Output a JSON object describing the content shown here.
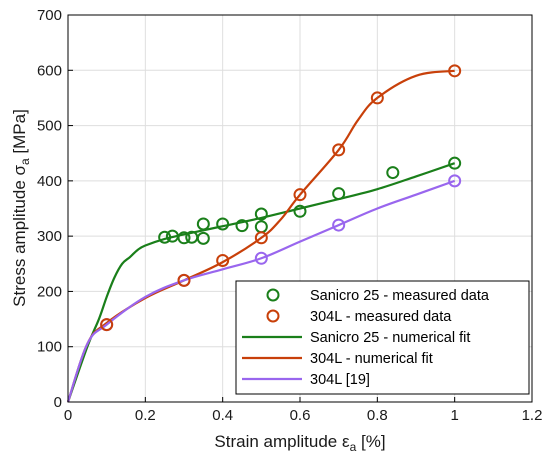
{
  "chart_data": {
    "type": "line",
    "xlabel": {
      "main": "Strain amplitude ε",
      "sub": "a",
      "unit": " [%]"
    },
    "ylabel": {
      "main": "Stress amplitude σ",
      "sub": "a",
      "unit": " [MPa]"
    },
    "xlim": [
      0,
      1.2
    ],
    "ylim": [
      0,
      700
    ],
    "xticks": [
      0,
      0.2,
      0.4,
      0.6,
      0.8,
      1,
      1.2
    ],
    "xtick_labels": [
      "0",
      "0.2",
      "0.4",
      "0.6",
      "0.8",
      "1",
      "1.2"
    ],
    "yticks": [
      0,
      100,
      200,
      300,
      400,
      500,
      600,
      700
    ],
    "ytick_labels": [
      "0",
      "100",
      "200",
      "300",
      "400",
      "500",
      "600",
      "700"
    ],
    "grid": true,
    "legend_position": "bottom-right",
    "colors": {
      "sanicro": "#1a7f1a",
      "l304": "#c8400a",
      "ref": "#9966ee"
    },
    "series": [
      {
        "name": "Sanicro 25 - measured data",
        "kind": "markers",
        "color_key": "sanicro",
        "x": [
          0.25,
          0.27,
          0.3,
          0.32,
          0.35,
          0.35,
          0.4,
          0.45,
          0.5,
          0.5,
          0.6,
          0.7,
          0.84,
          1.0
        ],
        "y": [
          298,
          300,
          297,
          298,
          322,
          296,
          322,
          319,
          340,
          317,
          345,
          377,
          415,
          432
        ]
      },
      {
        "name": "304L - measured data",
        "kind": "markers",
        "color_key": "l304",
        "x": [
          0.1,
          0.3,
          0.4,
          0.5,
          0.6,
          0.7,
          0.8,
          1.0
        ],
        "y": [
          140,
          220,
          256,
          297,
          375,
          456,
          550,
          599
        ]
      },
      {
        "name": "Sanicro 25 - numerical fit",
        "kind": "line",
        "color_key": "sanicro",
        "x": [
          0,
          0.05,
          0.08,
          0.1,
          0.12,
          0.14,
          0.16,
          0.18,
          0.2,
          0.25,
          0.3,
          0.4,
          0.5,
          0.6,
          0.7,
          0.8,
          0.9,
          1.0
        ],
        "y": [
          0,
          100,
          150,
          190,
          225,
          250,
          262,
          275,
          283,
          295,
          303,
          318,
          333,
          350,
          367,
          385,
          408,
          432
        ]
      },
      {
        "name": "304L - numerical fit",
        "kind": "line",
        "color_key": "l304",
        "x": [
          0,
          0.05,
          0.1,
          0.2,
          0.3,
          0.4,
          0.5,
          0.55,
          0.6,
          0.7,
          0.75,
          0.8,
          0.9,
          1.0
        ],
        "y": [
          0,
          105,
          143,
          188,
          220,
          253,
          297,
          330,
          375,
          456,
          510,
          550,
          590,
          599
        ]
      },
      {
        "name": "304L [19]",
        "kind": "line_markers",
        "color_key": "ref",
        "x": [
          0,
          0.05,
          0.1,
          0.2,
          0.3,
          0.4,
          0.5,
          0.6,
          0.7,
          0.8,
          0.9,
          1.0
        ],
        "y": [
          0,
          105,
          140,
          190,
          220,
          240,
          260,
          290,
          320,
          350,
          375,
          400
        ],
        "marker_x": [
          0.1,
          0.3,
          0.5,
          0.7,
          1.0
        ],
        "marker_y": [
          140,
          220,
          260,
          320,
          400
        ]
      }
    ],
    "legend_entries": [
      {
        "label": "Sanicro 25 - measured data",
        "symbol": "marker",
        "color_key": "sanicro"
      },
      {
        "label": "304L - measured data",
        "symbol": "marker",
        "color_key": "l304"
      },
      {
        "label": "Sanicro 25 - numerical fit",
        "symbol": "line",
        "color_key": "sanicro"
      },
      {
        "label": "304L - numerical fit",
        "symbol": "line",
        "color_key": "l304"
      },
      {
        "label": "304L [19]",
        "symbol": "line",
        "color_key": "ref"
      }
    ]
  }
}
